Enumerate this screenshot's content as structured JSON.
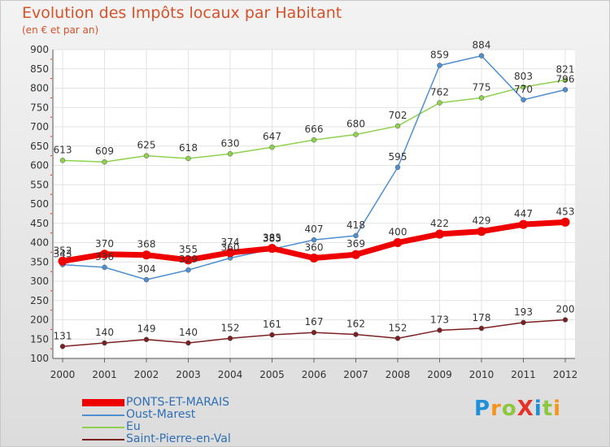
{
  "title": "Evolution des Impôts locaux par Habitant",
  "subtitle": "(en € et par an)",
  "logo": {
    "text": "ProXiti",
    "colors": [
      "#1f8fd8",
      "#f7941d",
      "#8dc63f",
      "#e5332a",
      "#1f8fd8",
      "#8dc63f",
      "#f7941d"
    ]
  },
  "chart_data": {
    "type": "line",
    "x": [
      "2000",
      "2001",
      "2002",
      "2003",
      "2004",
      "2005",
      "2006",
      "2007",
      "2008",
      "2009",
      "2010",
      "2011",
      "2012"
    ],
    "ylim": [
      100,
      900
    ],
    "yticks": [
      100,
      150,
      200,
      250,
      300,
      350,
      400,
      450,
      500,
      550,
      600,
      650,
      700,
      750,
      800,
      850,
      900
    ],
    "grid": true,
    "legend_position": "bottom-left",
    "series": [
      {
        "name": "Saint-Pierre-en-Val",
        "color": "#7a2020",
        "values": [
          131,
          140,
          149,
          140,
          152,
          161,
          167,
          162,
          152,
          173,
          178,
          193,
          200
        ],
        "point_labels": [
          "131",
          "140",
          "149",
          "140",
          "152",
          "161",
          "167",
          "162",
          "152",
          "173",
          "178",
          "193",
          "200"
        ]
      },
      {
        "name": "Eu",
        "color": "#8fd14f",
        "values": [
          613,
          609,
          625,
          618,
          630,
          647,
          666,
          680,
          702,
          762,
          775,
          803,
          821
        ],
        "point_labels": [
          "613",
          "609",
          "625",
          "618",
          "630",
          "647",
          "666",
          "680",
          "702",
          "762",
          "775",
          "803",
          "821"
        ]
      },
      {
        "name": "Oust-Marest",
        "color": "#4f8fd0",
        "values": [
          343,
          336,
          304,
          329,
          360,
          383,
          407,
          418,
          595,
          859,
          884,
          770,
          796
        ],
        "point_labels": [
          "343",
          "336",
          "304",
          "329",
          "360",
          "383",
          "407",
          "418",
          "595",
          "859",
          "884",
          "770",
          "796"
        ]
      },
      {
        "name": "PONTS-ET-MARAIS",
        "color": "#ee0000",
        "values": [
          352,
          370,
          368,
          355,
          374,
          385,
          360,
          369,
          400,
          422,
          429,
          447,
          453
        ],
        "point_labels": [
          "352",
          "370",
          "368",
          "355",
          "374",
          "385",
          "360",
          "369",
          "400",
          "422",
          "429",
          "447",
          "453"
        ]
      }
    ],
    "legend": [
      "PONTS-ET-MARAIS",
      "Oust-Marest",
      "Eu",
      "Saint-Pierre-en-Val"
    ]
  }
}
